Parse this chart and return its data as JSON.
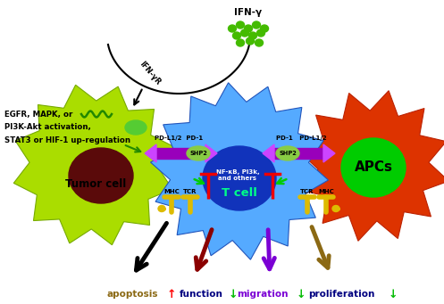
{
  "bg_color": "#ffffff",
  "ifn_gamma_label": "IFN-γ",
  "ifn_r_label": "IFN-γR",
  "tumor_cell_label": "Tumor cell",
  "t_cell_label": "T cell",
  "apcs_label": "APCs",
  "tumor_text1": "EGFR, MAPK, or",
  "tumor_text2": "PI3K-Akt activation,",
  "tumor_text3": "STAT3 or HIF-1 up-regulation",
  "pd_l12_pd1_left": "PD-L1/2  PD-1",
  "pd1_pdl12_right": "PD-1   PD-L1/2",
  "shp2_label": "SHP2",
  "nfkb_label": "NF-κB, PI3k,\nand others",
  "mhc_label": "MHC",
  "tcr_label": "TCR",
  "bottom_labels": [
    "apoptosis",
    "function",
    "migration",
    "proliferation"
  ],
  "bottom_arrows_colors": [
    "#000000",
    "#8b0000",
    "#7b00d4",
    "#8b6914"
  ],
  "bottom_label_colors_word": [
    "#8b6914",
    "#000080",
    "#7b00d4",
    "#000080"
  ],
  "up_arrow_color": "#ff0000",
  "down_arrow_color": "#00bb00",
  "tumor_cell_body_color": "#aadd00",
  "tumor_cell_nucleus_color": "#5a0a0a",
  "t_cell_body_color": "#55aaff",
  "t_cell_inner_color": "#1133bb",
  "apcs_body_color": "#dd3300",
  "apcs_nucleus_color": "#00cc00",
  "green_dots_color": "#44bb00",
  "pd_bar_color": "#9900bb",
  "pd_bar_end_color": "#cc44ff",
  "shp2_color": "#88cc44",
  "mhc_tcr_color": "#ddbb00",
  "ifnr_body_color": "#55cc33",
  "arrow_green": "#00cc00",
  "red_inhibit": "#ee0000",
  "wavy_color": "#228800"
}
